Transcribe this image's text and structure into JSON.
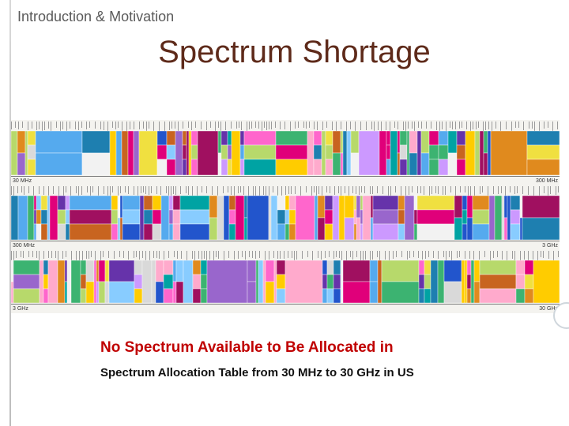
{
  "slide": {
    "section": "Introduction & Motivation",
    "title": "Spectrum Shortage",
    "headline": "No Spectrum Available to Be Allocated in",
    "caption": "Spectrum Allocation Table  from 30 MHz to 30 GHz in US"
  },
  "chart": {
    "bands": [
      {
        "start_label": "30 MHz",
        "end_label": "300 MHz"
      },
      {
        "start_label": "300 MHz",
        "end_label": "3 GHz"
      },
      {
        "start_label": "3 GHz",
        "end_label": "30 GHz"
      }
    ]
  },
  "colors": {
    "title": "#5e2a1a",
    "headline": "#c00000",
    "palette": [
      "#e0007a",
      "#ff66cc",
      "#a01060",
      "#2255cc",
      "#55aaee",
      "#00a3a3",
      "#3cb371",
      "#b7d96b",
      "#f0e040",
      "#ffcc00",
      "#e08a1e",
      "#c86420",
      "#9966cc",
      "#6633aa",
      "#cc99ff",
      "#ffaacc",
      "#f2f2f2",
      "#d9d9d9",
      "#88ccff",
      "#1e7fb0"
    ]
  }
}
